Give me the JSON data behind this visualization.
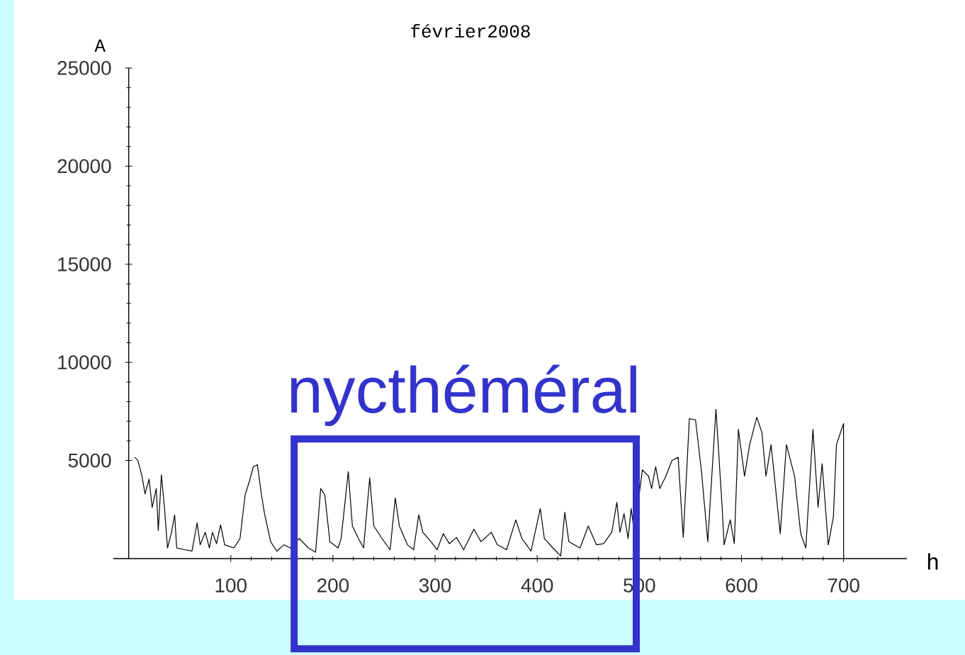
{
  "chart_data": {
    "type": "line",
    "title": "février2008",
    "xlabel": "h",
    "ylabel": "A",
    "color": "#000000",
    "marker": "none",
    "grid": false,
    "annotations": [
      "nycthéméral"
    ],
    "xlim": [
      -15,
      762
    ],
    "ylim": [
      0,
      25000
    ],
    "xticks": [
      100,
      200,
      300,
      400,
      500,
      600,
      700
    ],
    "yticks": [
      5000,
      10000,
      15000,
      20000,
      25000
    ],
    "x": [
      6,
      9,
      13,
      16,
      20,
      23,
      27,
      29,
      32,
      35,
      38,
      42,
      45,
      47,
      55,
      62,
      67,
      70,
      75,
      79,
      82,
      86,
      90,
      94,
      103,
      109,
      114,
      118,
      122,
      126,
      130,
      133,
      139,
      145,
      152,
      158,
      167,
      176,
      183,
      188,
      192,
      197,
      205,
      208,
      215,
      219,
      225,
      230,
      236,
      240,
      248,
      256,
      261,
      265,
      273,
      279,
      284,
      288,
      296,
      302,
      308,
      314,
      321,
      328,
      338,
      345,
      355,
      361,
      370,
      379,
      385,
      394,
      403,
      407,
      417,
      423,
      427,
      431,
      442,
      450,
      458,
      465,
      473,
      478,
      481,
      485,
      489,
      492,
      495,
      503,
      509,
      512,
      516,
      520,
      526,
      532,
      538,
      543,
      549,
      555,
      561,
      567,
      575,
      581,
      583,
      589,
      593,
      597,
      603,
      608,
      615,
      620,
      624,
      629,
      638,
      644,
      652,
      658,
      663,
      670,
      675,
      679,
      685,
      690,
      693,
      697,
      700,
      700
    ],
    "values": [
      5160,
      5000,
      4200,
      3300,
      4050,
      2600,
      3570,
      1430,
      4270,
      2600,
      540,
      1340,
      2230,
      540,
      450,
      380,
      1820,
      700,
      1340,
      540,
      1340,
      760,
      1720,
      700,
      540,
      1020,
      3250,
      3900,
      4680,
      4780,
      3250,
      2290,
      860,
      380,
      700,
      540,
      1020,
      540,
      320,
      3570,
      3250,
      860,
      540,
      1020,
      4430,
      1660,
      1020,
      540,
      4110,
      1660,
      1020,
      450,
      3090,
      1660,
      700,
      450,
      2230,
      1340,
      860,
      450,
      1270,
      760,
      1080,
      450,
      1500,
      860,
      1340,
      700,
      450,
      1970,
      1020,
      380,
      2550,
      1020,
      450,
      130,
      2360,
      860,
      540,
      1660,
      700,
      760,
      1340,
      2870,
      1340,
      2290,
      1020,
      2550,
      1340,
      4520,
      4200,
      3570,
      4680,
      3570,
      4200,
      5000,
      5160,
      1080,
      7130,
      7070,
      4360,
      860,
      7610,
      2680,
      700,
      1970,
      760,
      6590,
      4200,
      5800,
      7200,
      6430,
      4200,
      5800,
      1270,
      5800,
      4200,
      1270,
      540,
      6590,
      2610,
      4840,
      700,
      2130,
      5800,
      6430,
      6880,
      60
    ]
  }
}
